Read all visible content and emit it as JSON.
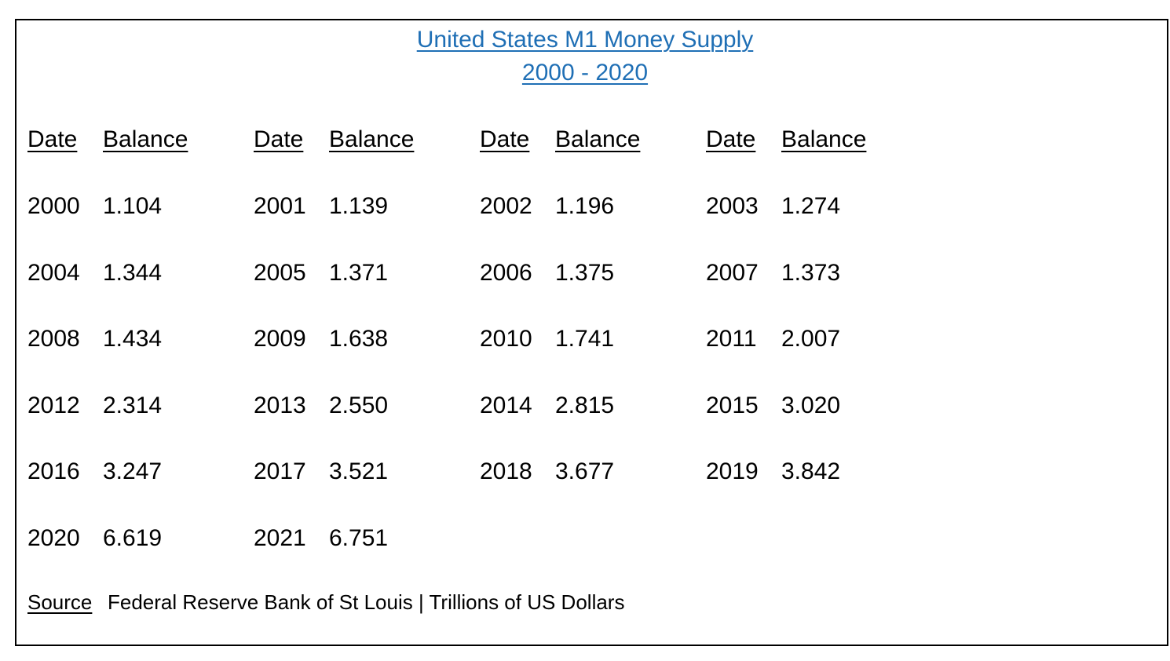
{
  "title": {
    "line1": "United States M1 Money Supply",
    "line2": "2000 - 2020"
  },
  "headers": {
    "date": "Date",
    "balance": "Balance"
  },
  "chart_data": {
    "type": "table",
    "columns": [
      "Date",
      "Balance"
    ],
    "rows": [
      [
        "2000",
        "1.104"
      ],
      [
        "2001",
        "1.139"
      ],
      [
        "2002",
        "1.196"
      ],
      [
        "2003",
        "1.274"
      ],
      [
        "2004",
        "1.344"
      ],
      [
        "2005",
        "1.371"
      ],
      [
        "2006",
        "1.375"
      ],
      [
        "2007",
        "1.373"
      ],
      [
        "2008",
        "1.434"
      ],
      [
        "2009",
        "1.638"
      ],
      [
        "2010",
        "1.741"
      ],
      [
        "2011",
        "2.007"
      ],
      [
        "2012",
        "2.314"
      ],
      [
        "2013",
        "2.550"
      ],
      [
        "2014",
        "2.815"
      ],
      [
        "2015",
        "3.020"
      ],
      [
        "2016",
        "3.247"
      ],
      [
        "2017",
        "3.521"
      ],
      [
        "2018",
        "3.677"
      ],
      [
        "2019",
        "3.842"
      ],
      [
        "2020",
        "6.619"
      ],
      [
        "2021",
        "6.751"
      ]
    ]
  },
  "source": {
    "label": "Source",
    "text": "Federal Reserve Bank of St Louis | Trillions of US Dollars"
  },
  "colors": {
    "title": "#1f6fb5",
    "text": "#000000",
    "border": "#000000"
  }
}
